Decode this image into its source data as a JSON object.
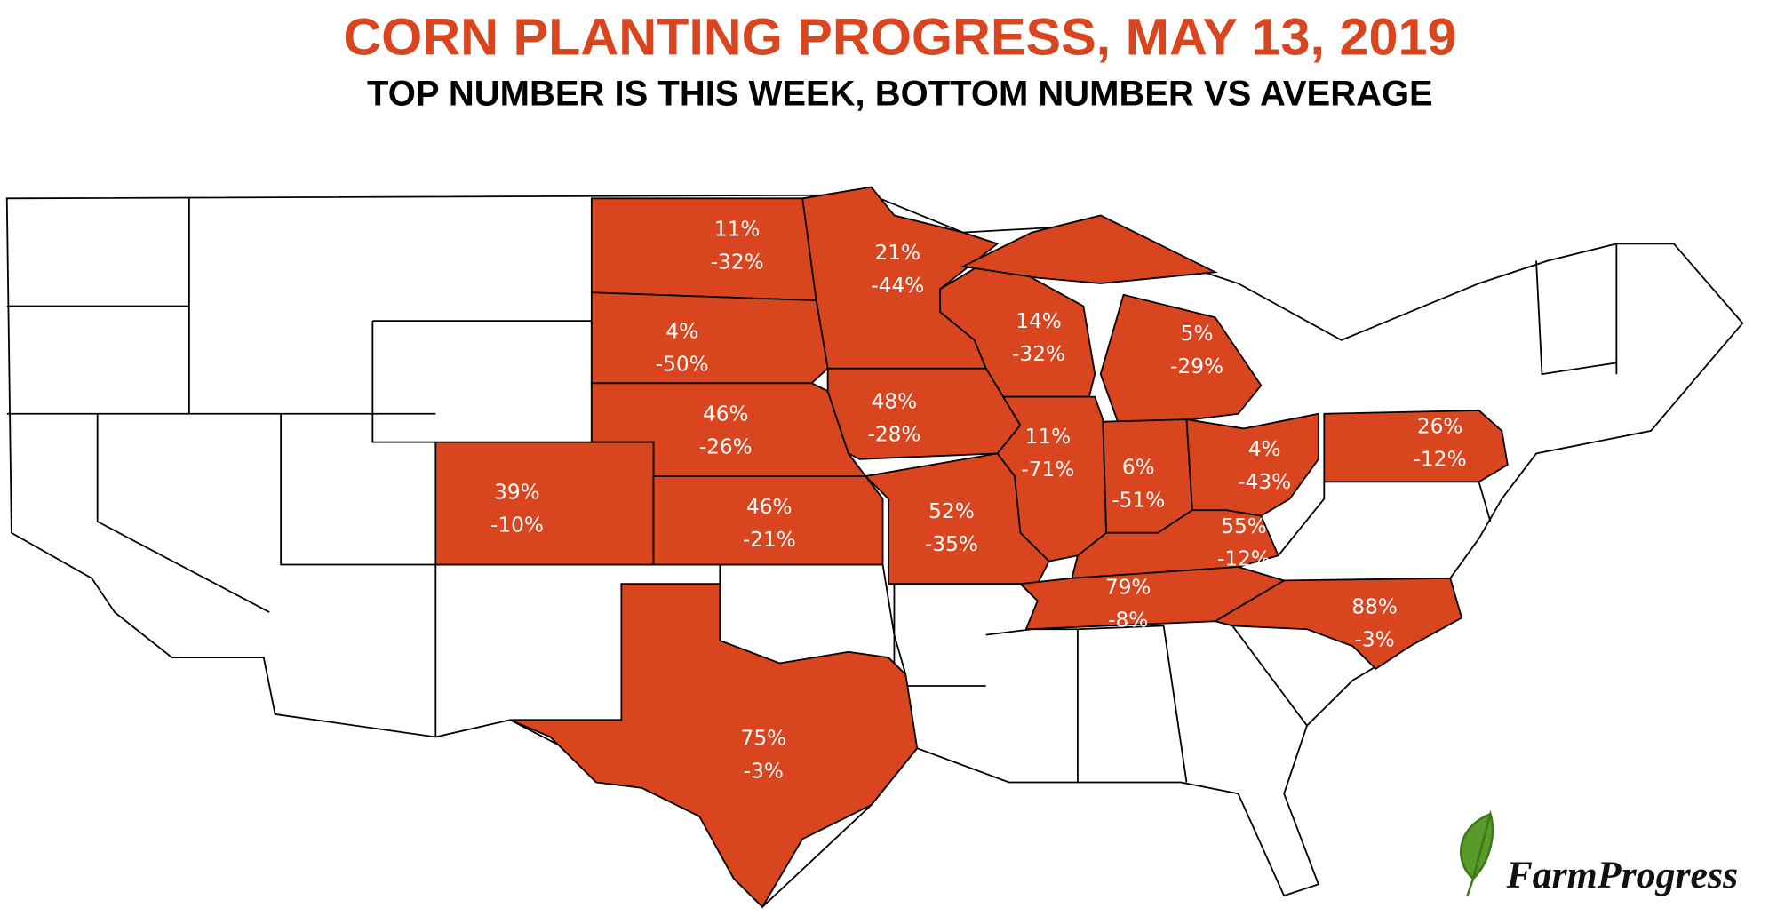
{
  "header": {
    "title": "CORN PLANTING PROGRESS, MAY 13, 2019",
    "subtitle": "TOP NUMBER IS THIS WEEK, BOTTOM NUMBER VS AVERAGE"
  },
  "states": [
    {
      "top": "11%",
      "bottom": "-32%"
    },
    {
      "top": "21%",
      "bottom": "-44%"
    },
    {
      "top": "4%",
      "bottom": "-50%"
    },
    {
      "top": "14%",
      "bottom": "-32%"
    },
    {
      "top": "5%",
      "bottom": "-29%"
    },
    {
      "top": "46%",
      "bottom": "-26%"
    },
    {
      "top": "48%",
      "bottom": "-28%"
    },
    {
      "top": "11%",
      "bottom": "-71%"
    },
    {
      "top": "6%",
      "bottom": "-51%"
    },
    {
      "top": "4%",
      "bottom": "-43%"
    },
    {
      "top": "26%",
      "bottom": "-12%"
    },
    {
      "top": "39%",
      "bottom": "-10%"
    },
    {
      "top": "46%",
      "bottom": "-21%"
    },
    {
      "top": "52%",
      "bottom": "-35%"
    },
    {
      "top": "55%",
      "bottom": "-12%"
    },
    {
      "top": "79%",
      "bottom": "-8%"
    },
    {
      "top": "88%",
      "bottom": "-3%"
    },
    {
      "top": "75%",
      "bottom": "-3%"
    }
  ],
  "logo": {
    "text": "FarmProgress"
  }
}
